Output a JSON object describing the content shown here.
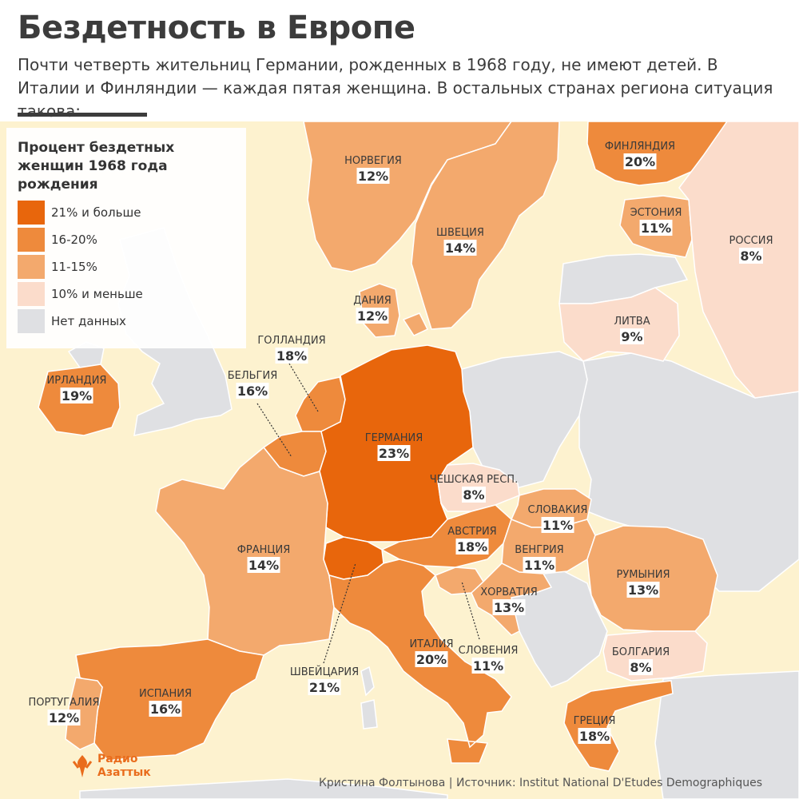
{
  "title": "Бездетность в Европе",
  "subtitle": "Почти четверть жительниц Германии, рожденных в 1968 году, не имеют детей. В Италии и Финляндии — каждая пятая женщина. В остальных странах региона ситуация такова:",
  "legend": {
    "title": "Процент бездетных женщин 1968 года рождения",
    "items": [
      {
        "label": "21% и больше",
        "color": "#e8660c"
      },
      {
        "label": "16-20%",
        "color": "#ee8a3c"
      },
      {
        "label": "11-15%",
        "color": "#f3a96d"
      },
      {
        "label": "10% и меньше",
        "color": "#fbdccb"
      },
      {
        "label": "Нет данных",
        "color": "#dfe0e3"
      }
    ]
  },
  "colors": {
    "water": "#fdf2cf",
    "nodata": "#dfe0e3",
    "border": "#ffffff"
  },
  "countries": [
    {
      "name": "НОРВЕГИЯ",
      "value": "12%",
      "class": "11-15%"
    },
    {
      "name": "ФИНЛЯНДИЯ",
      "value": "20%",
      "class": "16-20%"
    },
    {
      "name": "ШВЕЦИЯ",
      "value": "14%",
      "class": "11-15%"
    },
    {
      "name": "ЭСТОНИЯ",
      "value": "11%",
      "class": "11-15%"
    },
    {
      "name": "РОССИЯ",
      "value": "8%",
      "class": "10% и меньше"
    },
    {
      "name": "ДАНИЯ",
      "value": "12%",
      "class": "11-15%"
    },
    {
      "name": "ЛИТВА",
      "value": "9%",
      "class": "10% и меньше"
    },
    {
      "name": "ГОЛЛАНДИЯ",
      "value": "18%",
      "class": "16-20%"
    },
    {
      "name": "ИРЛАНДИЯ",
      "value": "19%",
      "class": "16-20%"
    },
    {
      "name": "БЕЛЬГИЯ",
      "value": "16%",
      "class": "16-20%"
    },
    {
      "name": "ГЕРМАНИЯ",
      "value": "23%",
      "class": "21% и больше"
    },
    {
      "name": "ЧЕШСКАЯ РЕСП.",
      "value": "8%",
      "class": "10% и меньше"
    },
    {
      "name": "СЛОВАКИЯ",
      "value": "11%",
      "class": "11-15%"
    },
    {
      "name": "АВСТРИЯ",
      "value": "18%",
      "class": "16-20%"
    },
    {
      "name": "ВЕНГРИЯ",
      "value": "11%",
      "class": "11-15%"
    },
    {
      "name": "ФРАНЦИЯ",
      "value": "14%",
      "class": "11-15%"
    },
    {
      "name": "РУМЫНИЯ",
      "value": "13%",
      "class": "11-15%"
    },
    {
      "name": "ХОРВАТИЯ",
      "value": "13%",
      "class": "11-15%"
    },
    {
      "name": "ИТАЛИЯ",
      "value": "20%",
      "class": "16-20%"
    },
    {
      "name": "СЛОВЕНИЯ",
      "value": "11%",
      "class": "11-15%"
    },
    {
      "name": "БОЛГАРИЯ",
      "value": "8%",
      "class": "10% и меньше"
    },
    {
      "name": "ШВЕЙЦАРИЯ",
      "value": "21%",
      "class": "21% и больше"
    },
    {
      "name": "ПОРТУГАЛИЯ",
      "value": "12%",
      "class": "11-15%"
    },
    {
      "name": "ИСПАНИЯ",
      "value": "16%",
      "class": "16-20%"
    },
    {
      "name": "ГРЕЦИЯ",
      "value": "18%",
      "class": "16-20%"
    }
  ],
  "logo": {
    "line1": "Радио",
    "line2": "Азаттык"
  },
  "credit": "Кристина Фолтынова | Источник: Institut National D'Etudes Demographiques"
}
